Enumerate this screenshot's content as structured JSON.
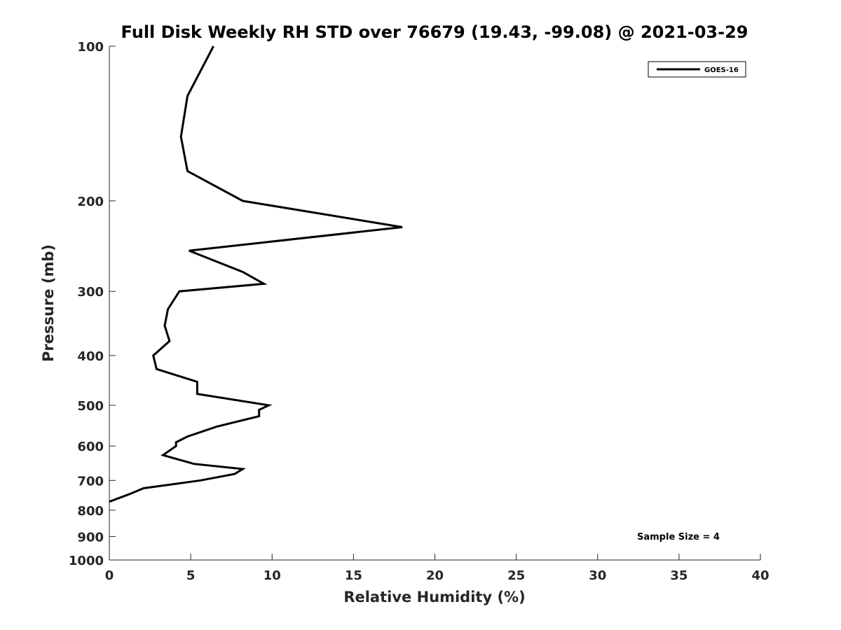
{
  "chart_data": {
    "type": "line",
    "title": "Full Disk Weekly RH STD over 76679 (19.43, -99.08) @ 2021-03-29",
    "xlabel": "Relative Humidity (%)",
    "ylabel": "Pressure (mb)",
    "xlim": [
      0,
      40
    ],
    "ylim": [
      100,
      1000
    ],
    "y_scale": "log",
    "y_reversed": true,
    "grid": false,
    "legend_position": "top-right",
    "x_ticks": [
      "0",
      "5",
      "10",
      "15",
      "20",
      "25",
      "30",
      "35",
      "40"
    ],
    "y_ticks": [
      "100",
      "200",
      "300",
      "400",
      "500",
      "600",
      "700",
      "800",
      "900",
      "1000"
    ],
    "annotation": "Sample Size = 4",
    "series": [
      {
        "name": "GOES-16",
        "color": "#000000",
        "points": [
          [
            6.4,
            100
          ],
          [
            4.8,
            125
          ],
          [
            4.4,
            150
          ],
          [
            4.8,
            175
          ],
          [
            8.2,
            200
          ],
          [
            18.0,
            225
          ],
          [
            4.9,
            250
          ],
          [
            8.2,
            275
          ],
          [
            9.5,
            290
          ],
          [
            4.3,
            300
          ],
          [
            3.6,
            325
          ],
          [
            3.4,
            350
          ],
          [
            3.7,
            375
          ],
          [
            2.7,
            400
          ],
          [
            2.9,
            425
          ],
          [
            5.4,
            450
          ],
          [
            5.4,
            475
          ],
          [
            9.8,
            500
          ],
          [
            9.2,
            510
          ],
          [
            9.2,
            525
          ],
          [
            6.6,
            550
          ],
          [
            4.8,
            575
          ],
          [
            4.1,
            590
          ],
          [
            4.1,
            600
          ],
          [
            3.3,
            625
          ],
          [
            5.2,
            650
          ],
          [
            8.2,
            665
          ],
          [
            7.7,
            680
          ],
          [
            5.6,
            700
          ],
          [
            2.1,
            725
          ],
          [
            1.2,
            745
          ],
          [
            0.0,
            770
          ]
        ]
      }
    ]
  }
}
